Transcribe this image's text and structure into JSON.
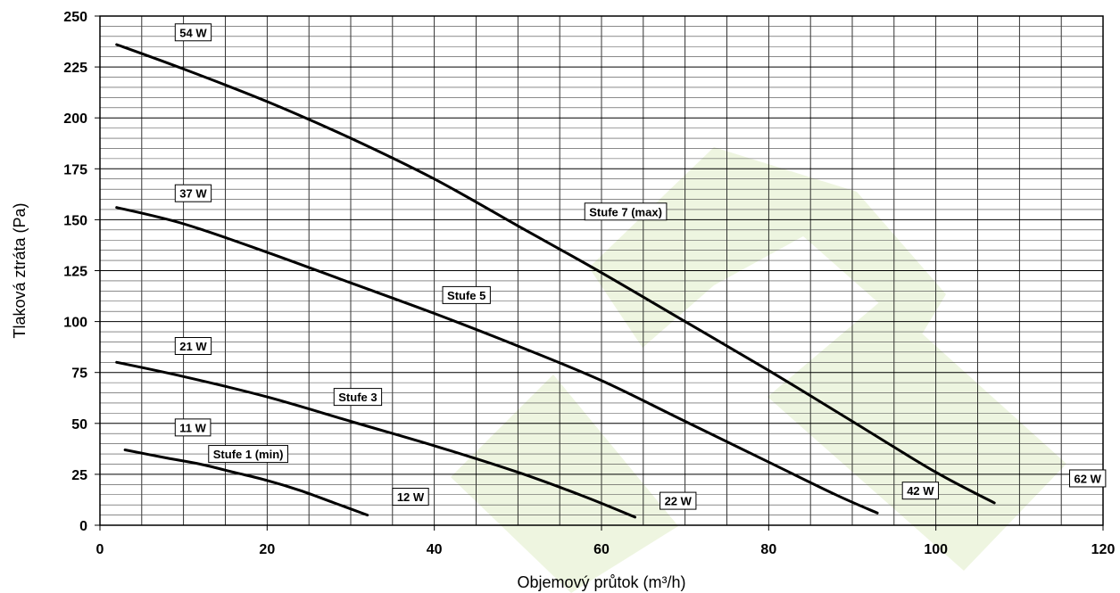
{
  "chart_data": {
    "type": "line",
    "title": "",
    "xlabel": "Objemový průtok (m³/h)",
    "ylabel": "Tlaková  ztráta (Pa)",
    "xlim": [
      0,
      120
    ],
    "ylim": [
      0,
      250
    ],
    "x_ticks": [
      0,
      20,
      40,
      60,
      80,
      100,
      120
    ],
    "y_ticks": [
      0,
      25,
      50,
      75,
      100,
      125,
      150,
      175,
      200,
      225,
      250
    ],
    "grid": true,
    "series": [
      {
        "name": "Stufe 1 (min)",
        "points": [
          [
            3,
            37
          ],
          [
            8,
            33
          ],
          [
            12,
            30
          ],
          [
            16,
            26
          ],
          [
            20,
            22
          ],
          [
            24,
            17
          ],
          [
            28,
            11
          ],
          [
            32,
            5
          ]
        ],
        "label_pos": [
          13,
          35
        ],
        "start_label": "11 W",
        "start_label_pos": [
          9,
          48
        ],
        "end_label": "12 W",
        "end_label_pos": [
          35,
          14
        ]
      },
      {
        "name": "Stufe 3",
        "points": [
          [
            2,
            80
          ],
          [
            10,
            73
          ],
          [
            20,
            63
          ],
          [
            30,
            51
          ],
          [
            40,
            39
          ],
          [
            50,
            26
          ],
          [
            58,
            14
          ],
          [
            64,
            4
          ]
        ],
        "label_pos": [
          28,
          63
        ],
        "start_label": "21 W",
        "start_label_pos": [
          9,
          88
        ],
        "end_label": "22 W",
        "end_label_pos": [
          67,
          12
        ]
      },
      {
        "name": "Stufe 5",
        "points": [
          [
            2,
            156
          ],
          [
            10,
            148
          ],
          [
            20,
            134
          ],
          [
            30,
            119
          ],
          [
            40,
            104
          ],
          [
            50,
            88
          ],
          [
            60,
            71
          ],
          [
            70,
            51
          ],
          [
            80,
            31
          ],
          [
            88,
            15
          ],
          [
            93,
            6
          ]
        ],
        "label_pos": [
          41,
          113
        ],
        "start_label": "37 W",
        "start_label_pos": [
          9,
          163
        ],
        "end_label": "42 W",
        "end_label_pos": [
          96,
          17
        ]
      },
      {
        "name": "Stufe 7 (max)",
        "points": [
          [
            2,
            236
          ],
          [
            10,
            224
          ],
          [
            20,
            208
          ],
          [
            30,
            190
          ],
          [
            40,
            170
          ],
          [
            50,
            147
          ],
          [
            60,
            124
          ],
          [
            70,
            100
          ],
          [
            80,
            76
          ],
          [
            90,
            51
          ],
          [
            100,
            26
          ],
          [
            107,
            11
          ]
        ],
        "label_pos": [
          58,
          154
        ],
        "start_label": "54 W",
        "start_label_pos": [
          9,
          242
        ],
        "end_label": "62 W",
        "end_label_pos": [
          116,
          23
        ]
      }
    ]
  }
}
